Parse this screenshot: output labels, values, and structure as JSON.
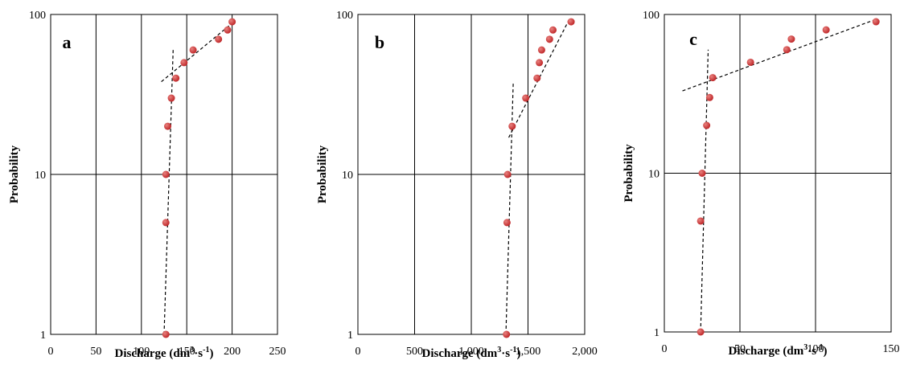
{
  "chart_data": [
    {
      "type": "scatter",
      "panel_label": "a",
      "xlabel": "Discharge (dm³·s⁻¹)",
      "ylabel": "Probability",
      "xlim": [
        0,
        250
      ],
      "ylim": [
        1,
        100
      ],
      "y_scale": "log",
      "grid": "x-major vertical lines and y decade lines",
      "x_ticks": [
        "0",
        "50",
        "100",
        "150",
        "200",
        "250"
      ],
      "y_ticks": [
        "1",
        "10",
        "100"
      ],
      "points": [
        {
          "x": 127,
          "y": 1
        },
        {
          "x": 127,
          "y": 5
        },
        {
          "x": 127,
          "y": 10
        },
        {
          "x": 129,
          "y": 20
        },
        {
          "x": 133,
          "y": 30
        },
        {
          "x": 138,
          "y": 40
        },
        {
          "x": 147,
          "y": 50
        },
        {
          "x": 157,
          "y": 60
        },
        {
          "x": 185,
          "y": 70
        },
        {
          "x": 195,
          "y": 80
        },
        {
          "x": 200,
          "y": 90
        }
      ],
      "trendlines": [
        {
          "style": "dashed",
          "from": {
            "x": 125,
            "y": 1
          },
          "to": {
            "x": 135,
            "y": 60
          }
        },
        {
          "style": "dashed",
          "from": {
            "x": 122,
            "y": 38
          },
          "to": {
            "x": 202,
            "y": 90
          }
        }
      ]
    },
    {
      "type": "scatter",
      "panel_label": "b",
      "xlabel": "Discharge (dm³·s⁻¹)",
      "ylabel": "Probability",
      "xlim": [
        0,
        2000
      ],
      "ylim": [
        1,
        100
      ],
      "y_scale": "log",
      "grid": "x-major vertical lines and y decade lines",
      "x_ticks": [
        "0",
        "500",
        "1,000",
        "1,500",
        "2,000"
      ],
      "y_ticks": [
        "1",
        "10",
        "100"
      ],
      "points": [
        {
          "x": 1310,
          "y": 1
        },
        {
          "x": 1315,
          "y": 5
        },
        {
          "x": 1320,
          "y": 10
        },
        {
          "x": 1360,
          "y": 20
        },
        {
          "x": 1480,
          "y": 30
        },
        {
          "x": 1580,
          "y": 40
        },
        {
          "x": 1600,
          "y": 50
        },
        {
          "x": 1620,
          "y": 60
        },
        {
          "x": 1690,
          "y": 70
        },
        {
          "x": 1720,
          "y": 80
        },
        {
          "x": 1880,
          "y": 90
        }
      ],
      "trendlines": [
        {
          "style": "dashed",
          "from": {
            "x": 1305,
            "y": 1
          },
          "to": {
            "x": 1370,
            "y": 38
          }
        },
        {
          "style": "dashed",
          "from": {
            "x": 1330,
            "y": 17
          },
          "to": {
            "x": 1870,
            "y": 95
          }
        }
      ]
    },
    {
      "type": "scatter",
      "panel_label": "c",
      "xlabel": "Discharge (dm³·s⁻¹)",
      "ylabel": "Probability",
      "xlim": [
        0,
        150
      ],
      "ylim": [
        1,
        100
      ],
      "y_scale": "log",
      "grid": "x-major vertical lines and y decade lines",
      "x_ticks": [
        "0",
        "50",
        "100",
        "150"
      ],
      "y_ticks": [
        "1",
        "10",
        "100"
      ],
      "points": [
        {
          "x": 24,
          "y": 1
        },
        {
          "x": 24,
          "y": 5
        },
        {
          "x": 25,
          "y": 10
        },
        {
          "x": 28,
          "y": 20
        },
        {
          "x": 30,
          "y": 30
        },
        {
          "x": 32,
          "y": 40
        },
        {
          "x": 57,
          "y": 50
        },
        {
          "x": 81,
          "y": 60
        },
        {
          "x": 84,
          "y": 70
        },
        {
          "x": 107,
          "y": 80
        },
        {
          "x": 140,
          "y": 90
        }
      ],
      "trendlines": [
        {
          "style": "dashed",
          "from": {
            "x": 24,
            "y": 1
          },
          "to": {
            "x": 29,
            "y": 60
          }
        },
        {
          "style": "dashed",
          "from": {
            "x": 12,
            "y": 33
          },
          "to": {
            "x": 141,
            "y": 94
          }
        }
      ]
    }
  ],
  "colors": {
    "point_fill": "#c0282a",
    "point_highlight": "#e8827f",
    "axis": "#000000",
    "trendline": "#000000"
  }
}
